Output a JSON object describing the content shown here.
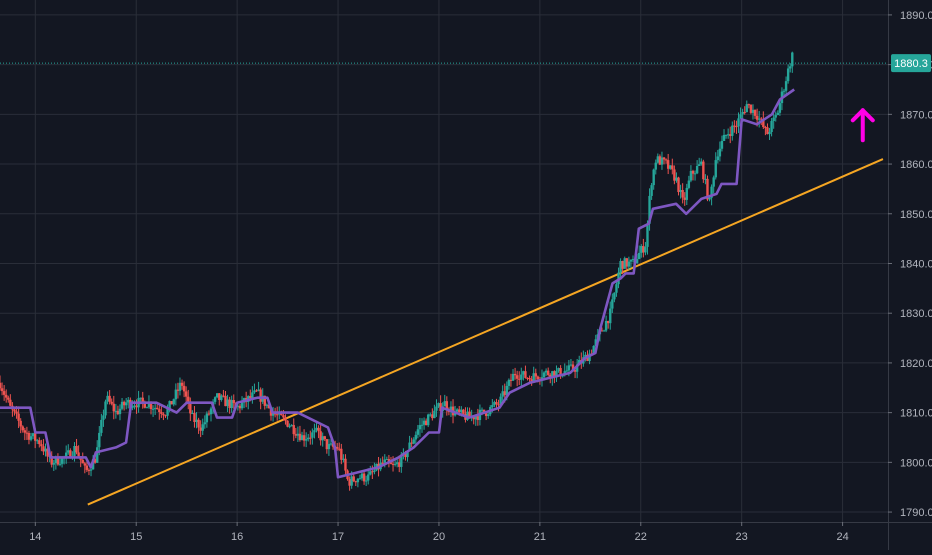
{
  "colors": {
    "background": "#131722",
    "grid": "#2a2e39",
    "axis_text": "#b2b5be",
    "candle_up": "#26a69a",
    "candle_down": "#ef5350",
    "indicator": "#7e57c2",
    "trendline": "#f5a623",
    "arrow": "#ff00e6",
    "price_line": "#26a69a",
    "price_label_bg": "#26a69a",
    "price_label_text": "#ffffff"
  },
  "chart_data": {
    "type": "candlestick",
    "x_tick_labels": [
      "14",
      "15",
      "16",
      "17",
      "20",
      "21",
      "22",
      "23",
      "24"
    ],
    "y_tick_labels": [
      "1890.0",
      "1880.0",
      "1870.0",
      "1860.0",
      "1850.0",
      "1840.0",
      "1830.0",
      "1820.0",
      "1810.0",
      "1800.0",
      "1790.0"
    ],
    "y_ticks": [
      1890,
      1880,
      1870,
      1860,
      1850,
      1840,
      1830,
      1820,
      1810,
      1800,
      1790
    ],
    "ylim": [
      1788,
      1893
    ],
    "xlim": [
      -0.35,
      8.45
    ],
    "last_price": 1880.3,
    "last_price_label": "1880.3",
    "close_path": [
      [
        -0.35,
        1816
      ],
      [
        -0.25,
        1811
      ],
      [
        -0.1,
        1806
      ],
      [
        0.05,
        1804
      ],
      [
        0.15,
        1800
      ],
      [
        0.3,
        1801
      ],
      [
        0.4,
        1803
      ],
      [
        0.5,
        1798
      ],
      [
        0.6,
        1801
      ],
      [
        0.7,
        1813
      ],
      [
        0.8,
        1810
      ],
      [
        0.9,
        1812
      ],
      [
        1.1,
        1812
      ],
      [
        1.3,
        1810
      ],
      [
        1.45,
        1816
      ],
      [
        1.55,
        1809
      ],
      [
        1.65,
        1807
      ],
      [
        1.8,
        1813
      ],
      [
        2.0,
        1811
      ],
      [
        2.2,
        1814
      ],
      [
        2.35,
        1810
      ],
      [
        2.5,
        1808
      ],
      [
        2.65,
        1805
      ],
      [
        2.8,
        1806
      ],
      [
        2.9,
        1803
      ],
      [
        3.0,
        1803
      ],
      [
        3.05,
        1800
      ],
      [
        3.1,
        1796
      ],
      [
        3.2,
        1797
      ],
      [
        3.3,
        1797
      ],
      [
        3.45,
        1800
      ],
      [
        3.55,
        1799
      ],
      [
        3.65,
        1801
      ],
      [
        3.8,
        1807
      ],
      [
        3.95,
        1810
      ],
      [
        4.05,
        1812
      ],
      [
        4.15,
        1810
      ],
      [
        4.3,
        1809
      ],
      [
        4.45,
        1810
      ],
      [
        4.6,
        1812
      ],
      [
        4.75,
        1818
      ],
      [
        4.9,
        1817
      ],
      [
        5.05,
        1818
      ],
      [
        5.2,
        1818
      ],
      [
        5.35,
        1819
      ],
      [
        5.5,
        1822
      ],
      [
        5.6,
        1826
      ],
      [
        5.7,
        1830
      ],
      [
        5.8,
        1840
      ],
      [
        5.92,
        1840
      ],
      [
        6.05,
        1844
      ],
      [
        6.1,
        1856
      ],
      [
        6.15,
        1861
      ],
      [
        6.25,
        1860
      ],
      [
        6.35,
        1857
      ],
      [
        6.42,
        1852
      ],
      [
        6.5,
        1858
      ],
      [
        6.6,
        1860
      ],
      [
        6.68,
        1852
      ],
      [
        6.75,
        1862
      ],
      [
        6.85,
        1866
      ],
      [
        6.95,
        1868
      ],
      [
        7.05,
        1872
      ],
      [
        7.15,
        1870
      ],
      [
        7.25,
        1866
      ],
      [
        7.35,
        1870
      ],
      [
        7.45,
        1878
      ],
      [
        7.5,
        1882
      ],
      [
        7.52,
        1880.3
      ]
    ],
    "wick_range": 1.6,
    "indicator_line": [
      [
        -0.35,
        1811
      ],
      [
        -0.05,
        1811
      ],
      [
        0.0,
        1806
      ],
      [
        0.1,
        1806
      ],
      [
        0.15,
        1801
      ],
      [
        0.5,
        1801
      ],
      [
        0.55,
        1799
      ],
      [
        0.6,
        1802
      ],
      [
        0.8,
        1803
      ],
      [
        0.9,
        1804
      ],
      [
        0.95,
        1812
      ],
      [
        1.2,
        1812
      ],
      [
        1.4,
        1810
      ],
      [
        1.5,
        1812
      ],
      [
        1.75,
        1812
      ],
      [
        1.8,
        1809
      ],
      [
        1.95,
        1809
      ],
      [
        2.0,
        1812
      ],
      [
        2.2,
        1813
      ],
      [
        2.3,
        1813
      ],
      [
        2.35,
        1810
      ],
      [
        2.6,
        1810
      ],
      [
        2.9,
        1807
      ],
      [
        2.97,
        1803
      ],
      [
        3.0,
        1797
      ],
      [
        3.2,
        1798
      ],
      [
        3.4,
        1799
      ],
      [
        3.6,
        1801
      ],
      [
        3.75,
        1803
      ],
      [
        3.9,
        1806
      ],
      [
        4.0,
        1806
      ],
      [
        4.03,
        1811
      ],
      [
        4.3,
        1809
      ],
      [
        4.6,
        1811
      ],
      [
        4.7,
        1814
      ],
      [
        4.9,
        1816
      ],
      [
        5.1,
        1817
      ],
      [
        5.3,
        1818
      ],
      [
        5.45,
        1821
      ],
      [
        5.55,
        1822
      ],
      [
        5.6,
        1827
      ],
      [
        5.72,
        1836
      ],
      [
        5.8,
        1837
      ],
      [
        5.85,
        1838
      ],
      [
        5.93,
        1838
      ],
      [
        5.98,
        1847
      ],
      [
        6.08,
        1848
      ],
      [
        6.12,
        1851
      ],
      [
        6.35,
        1852
      ],
      [
        6.45,
        1850
      ],
      [
        6.6,
        1853
      ],
      [
        6.75,
        1854
      ],
      [
        6.8,
        1856
      ],
      [
        6.95,
        1856
      ],
      [
        7.0,
        1869
      ],
      [
        7.15,
        1868
      ],
      [
        7.3,
        1870
      ],
      [
        7.38,
        1873
      ],
      [
        7.52,
        1875
      ]
    ],
    "trendline": {
      "from": [
        0.52,
        1791.5
      ],
      "to": [
        8.4,
        1861
      ]
    },
    "annotation": {
      "type": "arrow-up",
      "at": [
        8.2,
        1868
      ]
    }
  }
}
